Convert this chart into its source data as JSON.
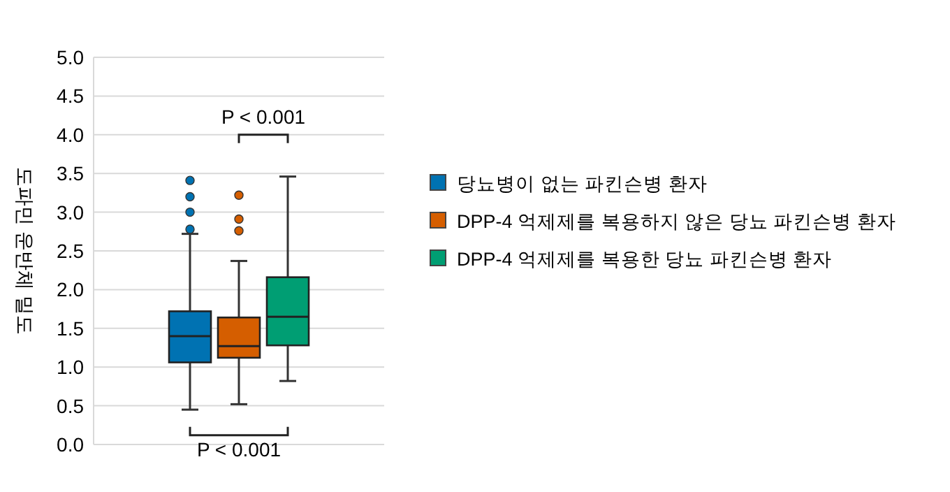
{
  "chart_data": {
    "type": "box",
    "ylabel": "도파민 운반체 밀도",
    "categories": [
      null
    ],
    "series": [
      {
        "name": "당뇨병이 없는 파킨슨병 환자",
        "color": "#0072b2",
        "boxes": [
          {
            "low": 0.45,
            "q1": 1.06,
            "median": 1.4,
            "q3": 1.72,
            "high": 2.72,
            "outliers": [
              2.78,
              3.0,
              3.2,
              3.41
            ]
          }
        ]
      },
      {
        "name": "DPP-4 억제제를 복용하지 않은 당뇨 파킨슨병 환자",
        "color": "#d55e00",
        "boxes": [
          {
            "low": 0.52,
            "q1": 1.12,
            "median": 1.27,
            "q3": 1.64,
            "high": 2.37,
            "outliers": [
              2.76,
              2.91,
              3.22
            ]
          }
        ]
      },
      {
        "name": "DPP-4 억제제를 복용한 당뇨 파킨슨병 환자",
        "color": "#009e73",
        "boxes": [
          {
            "low": 0.82,
            "q1": 1.28,
            "median": 1.65,
            "q3": 2.16,
            "high": 3.46
          }
        ]
      }
    ],
    "ylim": [
      0,
      5
    ],
    "yticks": [
      {
        "value": 0,
        "label": "0.0"
      },
      {
        "value": 0.5,
        "label": "0.5"
      },
      {
        "value": 1,
        "label": "1.0"
      },
      {
        "value": 1.5,
        "label": "1.5"
      },
      {
        "value": 2,
        "label": "2.0"
      },
      {
        "value": 2.5,
        "label": "2.5"
      },
      {
        "value": 3,
        "label": "3.0"
      },
      {
        "value": 3.5,
        "label": "3.5"
      },
      {
        "value": 4,
        "label": "4.0"
      },
      {
        "value": 4.5,
        "label": "4.5"
      },
      {
        "value": 5,
        "label": "5.0"
      }
    ],
    "grid": "y",
    "legend": "right",
    "annotations": [
      "P < 0.001",
      "P < 0.001"
    ]
  }
}
